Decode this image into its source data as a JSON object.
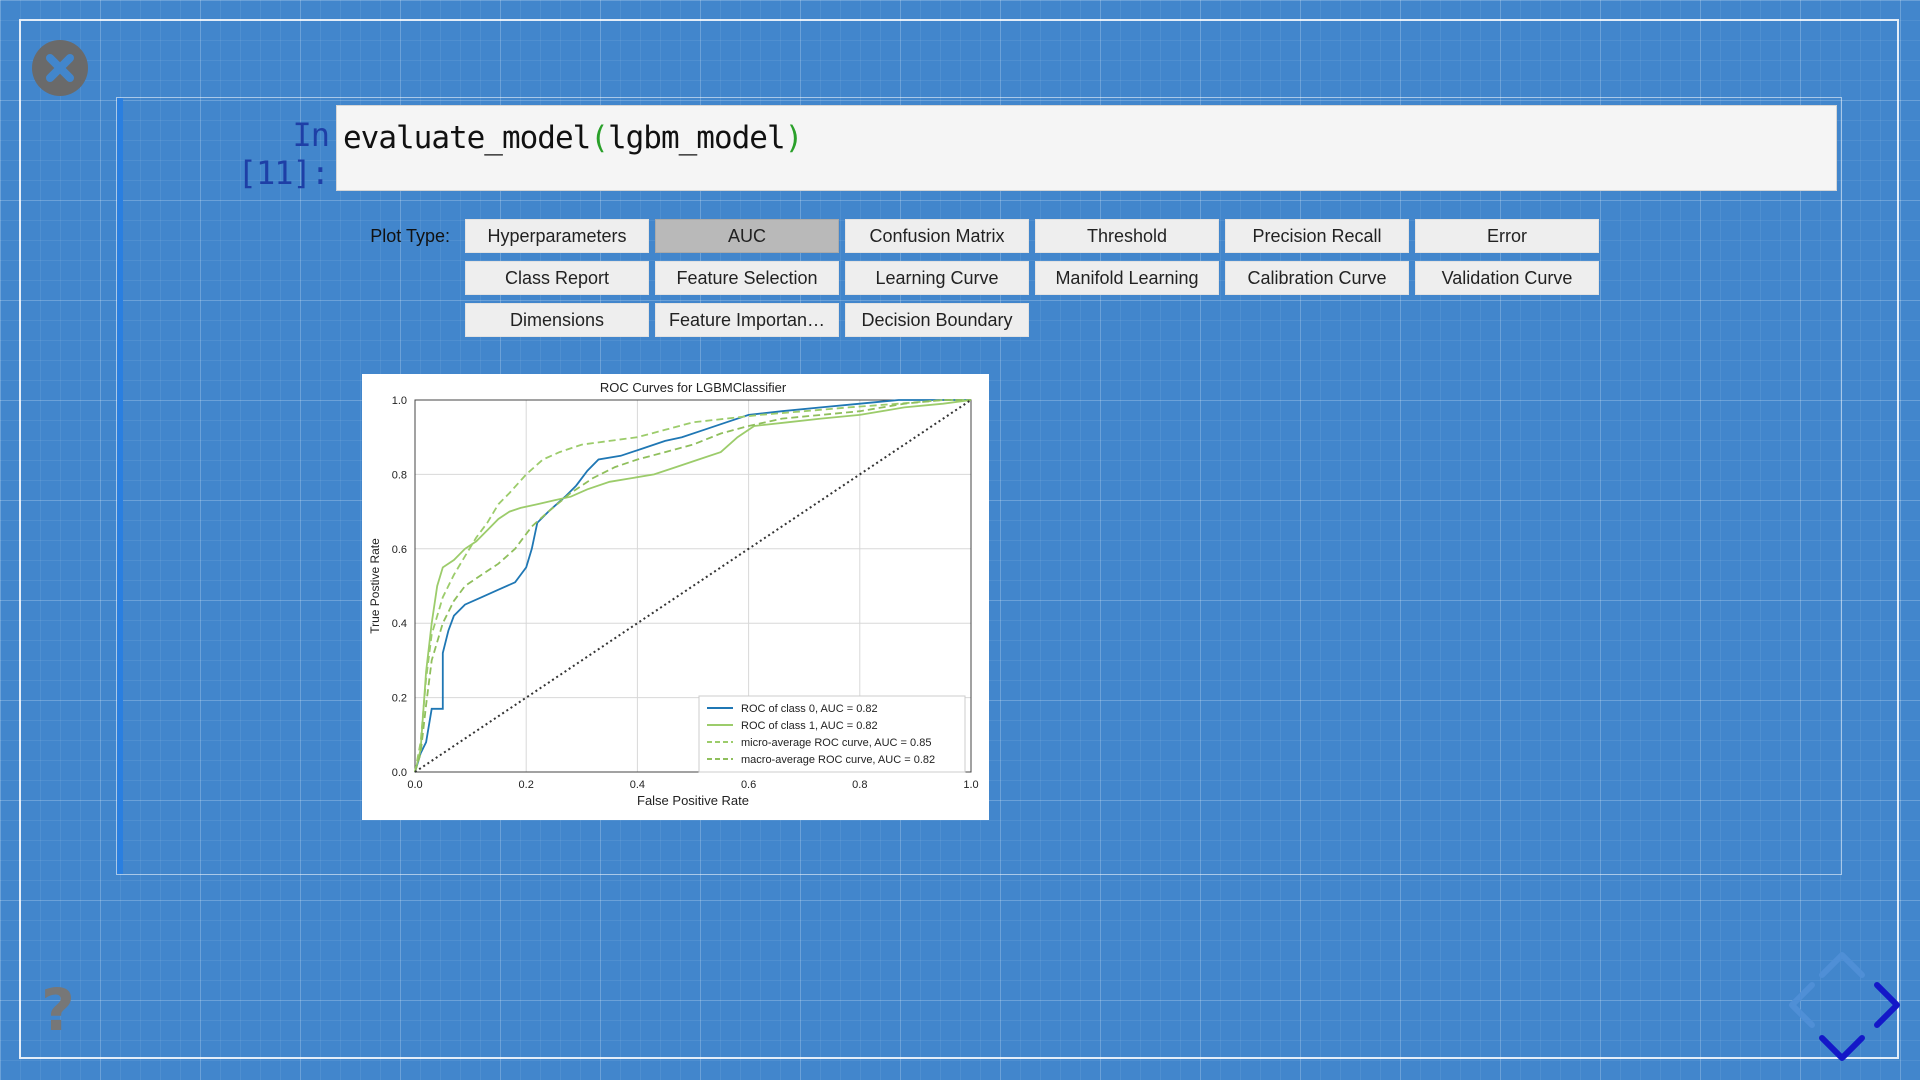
{
  "cell": {
    "prompt": "In [11]:",
    "code_func": "evaluate_model",
    "code_open": "(",
    "code_arg": "lgbm_model",
    "code_close": ")"
  },
  "widget": {
    "label": "Plot Type:",
    "selected": "AUC",
    "buttons": [
      "Hyperparameters",
      "AUC",
      "Confusion Matrix",
      "Threshold",
      "Precision Recall",
      "Error",
      "Class Report",
      "Feature Selection",
      "Learning Curve",
      "Manifold Learning",
      "Calibration Curve",
      "Validation Curve",
      "Dimensions",
      "Feature Importan…",
      "Decision Boundary"
    ]
  },
  "icons": {
    "close": "close-icon",
    "help": "question-mark-icon",
    "nav": [
      "chevron-up-icon",
      "chevron-left-icon",
      "chevron-right-icon",
      "chevron-down-icon"
    ]
  },
  "help_text": "?",
  "colors": {
    "background": "#4286cc",
    "class0": "#1f77b4",
    "class1": "#9ccc6b",
    "micro": "#9ccc6b",
    "macro": "#8fbf5c",
    "active_button": "#b9b9b9",
    "nav_arrow": "#1418c8"
  },
  "chart_data": {
    "type": "line",
    "title": "ROC Curves for LGBMClassifier",
    "xlabel": "False Positive Rate",
    "ylabel": "True Postive Rate",
    "xlim": [
      0,
      1
    ],
    "ylim": [
      0,
      1
    ],
    "xticks": [
      "0.0",
      "0.2",
      "0.4",
      "0.6",
      "0.8",
      "1.0"
    ],
    "yticks": [
      "0.0",
      "0.2",
      "0.4",
      "0.6",
      "0.8",
      "1.0"
    ],
    "grid": true,
    "legend_position": "lower-right",
    "series": [
      {
        "name": "ROC of class 0, AUC = 0.82",
        "style": "solid",
        "color": "#1f77b4",
        "points": [
          [
            0,
            0
          ],
          [
            0.01,
            0.05
          ],
          [
            0.02,
            0.08
          ],
          [
            0.03,
            0.17
          ],
          [
            0.05,
            0.17
          ],
          [
            0.05,
            0.32
          ],
          [
            0.06,
            0.38
          ],
          [
            0.07,
            0.42
          ],
          [
            0.09,
            0.45
          ],
          [
            0.12,
            0.47
          ],
          [
            0.15,
            0.49
          ],
          [
            0.18,
            0.51
          ],
          [
            0.2,
            0.55
          ],
          [
            0.21,
            0.6
          ],
          [
            0.22,
            0.67
          ],
          [
            0.24,
            0.7
          ],
          [
            0.27,
            0.74
          ],
          [
            0.29,
            0.77
          ],
          [
            0.31,
            0.81
          ],
          [
            0.33,
            0.84
          ],
          [
            0.37,
            0.85
          ],
          [
            0.41,
            0.87
          ],
          [
            0.45,
            0.89
          ],
          [
            0.48,
            0.9
          ],
          [
            0.52,
            0.92
          ],
          [
            0.56,
            0.94
          ],
          [
            0.6,
            0.96
          ],
          [
            0.66,
            0.97
          ],
          [
            0.73,
            0.98
          ],
          [
            0.8,
            0.99
          ],
          [
            0.87,
            1.0
          ],
          [
            1.0,
            1.0
          ]
        ]
      },
      {
        "name": "ROC of class 1, AUC = 0.82",
        "style": "solid",
        "color": "#9ccc6b",
        "points": [
          [
            0,
            0
          ],
          [
            0.01,
            0.06
          ],
          [
            0.02,
            0.27
          ],
          [
            0.03,
            0.4
          ],
          [
            0.04,
            0.5
          ],
          [
            0.05,
            0.55
          ],
          [
            0.07,
            0.57
          ],
          [
            0.09,
            0.6
          ],
          [
            0.11,
            0.62
          ],
          [
            0.13,
            0.65
          ],
          [
            0.15,
            0.68
          ],
          [
            0.17,
            0.7
          ],
          [
            0.19,
            0.71
          ],
          [
            0.22,
            0.72
          ],
          [
            0.25,
            0.73
          ],
          [
            0.28,
            0.74
          ],
          [
            0.31,
            0.76
          ],
          [
            0.35,
            0.78
          ],
          [
            0.39,
            0.79
          ],
          [
            0.43,
            0.8
          ],
          [
            0.47,
            0.82
          ],
          [
            0.51,
            0.84
          ],
          [
            0.55,
            0.86
          ],
          [
            0.58,
            0.9
          ],
          [
            0.61,
            0.93
          ],
          [
            0.67,
            0.94
          ],
          [
            0.73,
            0.95
          ],
          [
            0.8,
            0.96
          ],
          [
            0.88,
            0.98
          ],
          [
            0.95,
            0.99
          ],
          [
            1.0,
            1.0
          ]
        ]
      },
      {
        "name": "micro-average ROC curve, AUC = 0.85",
        "style": "dashed",
        "color": "#9ccc6b",
        "points": [
          [
            0,
            0
          ],
          [
            0.01,
            0.08
          ],
          [
            0.02,
            0.25
          ],
          [
            0.03,
            0.37
          ],
          [
            0.05,
            0.47
          ],
          [
            0.07,
            0.53
          ],
          [
            0.09,
            0.58
          ],
          [
            0.11,
            0.63
          ],
          [
            0.13,
            0.67
          ],
          [
            0.15,
            0.72
          ],
          [
            0.17,
            0.75
          ],
          [
            0.2,
            0.8
          ],
          [
            0.23,
            0.84
          ],
          [
            0.26,
            0.86
          ],
          [
            0.3,
            0.88
          ],
          [
            0.35,
            0.89
          ],
          [
            0.4,
            0.9
          ],
          [
            0.45,
            0.92
          ],
          [
            0.5,
            0.94
          ],
          [
            0.56,
            0.95
          ],
          [
            0.62,
            0.96
          ],
          [
            0.7,
            0.97
          ],
          [
            0.78,
            0.98
          ],
          [
            0.87,
            0.99
          ],
          [
            0.95,
            1.0
          ],
          [
            1.0,
            1.0
          ]
        ]
      },
      {
        "name": "macro-average ROC curve, AUC = 0.82",
        "style": "dashed",
        "color": "#8fbf5c",
        "points": [
          [
            0,
            0
          ],
          [
            0.01,
            0.05
          ],
          [
            0.02,
            0.18
          ],
          [
            0.03,
            0.3
          ],
          [
            0.05,
            0.4
          ],
          [
            0.07,
            0.46
          ],
          [
            0.09,
            0.5
          ],
          [
            0.12,
            0.53
          ],
          [
            0.15,
            0.56
          ],
          [
            0.18,
            0.6
          ],
          [
            0.21,
            0.66
          ],
          [
            0.24,
            0.7
          ],
          [
            0.28,
            0.75
          ],
          [
            0.32,
            0.79
          ],
          [
            0.36,
            0.82
          ],
          [
            0.4,
            0.84
          ],
          [
            0.45,
            0.86
          ],
          [
            0.5,
            0.88
          ],
          [
            0.55,
            0.91
          ],
          [
            0.6,
            0.93
          ],
          [
            0.66,
            0.95
          ],
          [
            0.73,
            0.96
          ],
          [
            0.8,
            0.97
          ],
          [
            0.88,
            0.99
          ],
          [
            0.95,
            1.0
          ],
          [
            1.0,
            1.0
          ]
        ]
      },
      {
        "name": "",
        "style": "dotted",
        "color": "#333333",
        "points": [
          [
            0,
            0
          ],
          [
            1,
            1
          ]
        ]
      }
    ]
  }
}
